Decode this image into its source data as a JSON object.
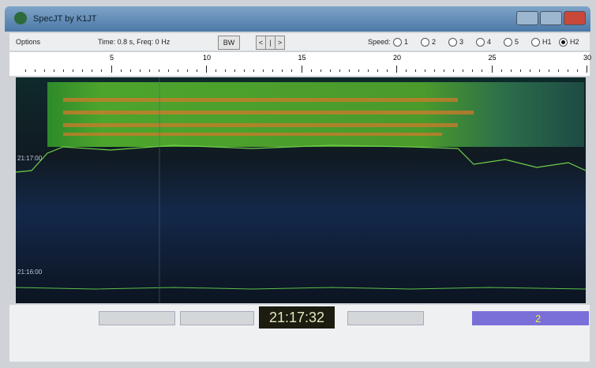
{
  "window": {
    "title": "SpecJT by K1JT"
  },
  "toolbar": {
    "menu": "Options",
    "status": "Time: 0.8 s, Freq: 0 Hz",
    "button": "BW",
    "nav": [
      "<",
      "|",
      ">"
    ],
    "speed": {
      "label": "Speed:",
      "options": [
        "1",
        "2",
        "3",
        "4",
        "5",
        "H1",
        "H2"
      ],
      "selected": 6
    }
  },
  "ruler": {
    "ticks": [
      5,
      10,
      15,
      20,
      25,
      30
    ]
  },
  "spectrogram": {
    "time_labels": [
      "21:17:00",
      "21:16:00"
    ]
  },
  "status_bar": {
    "clock": "21:17:32",
    "indicator": "2"
  }
}
